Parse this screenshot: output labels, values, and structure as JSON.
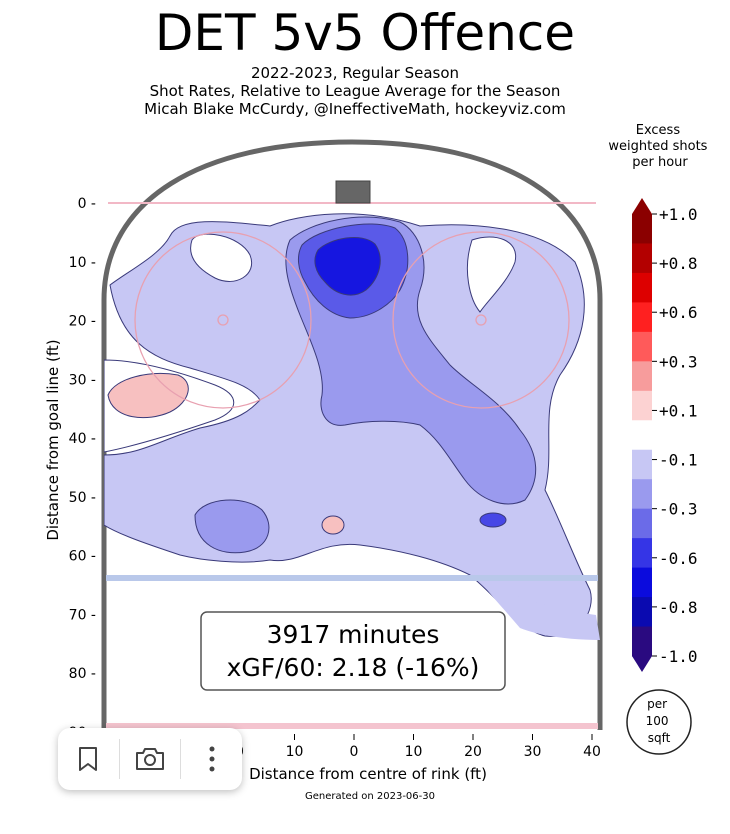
{
  "header": {
    "title": "DET 5v5 Offence",
    "subtitle_1": "2022-2023, Regular Season",
    "subtitle_2": "Shot Rates, Relative to League Average for the Season",
    "subtitle_3": "Micah Blake McCurdy, @IneffectiveMath, hockeyviz.com"
  },
  "chart_data": {
    "type": "heatmap",
    "xlabel": "Distance from centre of rink (ft)",
    "ylabel": "Distance from goal line (ft)",
    "x_ticks": [
      40,
      30,
      20,
      10,
      0,
      10,
      20,
      30,
      40
    ],
    "y_ticks": [
      0,
      10,
      20,
      30,
      40,
      50,
      60,
      70,
      80,
      90
    ],
    "colorbar_title": "Excess weighted shots per hour",
    "colorbar_ticks": [
      "+1.0",
      "+0.8",
      "+0.6",
      "+0.3",
      "+0.1",
      "-0.1",
      "-0.3",
      "-0.6",
      "-0.8",
      "-1.0"
    ],
    "colorbar_colors": [
      "#8b0000",
      "#b30000",
      "#dd0000",
      "#ff2020",
      "#ff5a5a",
      "#f79c9c",
      "#fcd2d2",
      "#ffffff",
      "#c7c7f4",
      "#9a9aee",
      "#6b6be8",
      "#3535e6",
      "#0b0bdd",
      "#0a0ab0",
      "#2a0a80"
    ],
    "unit_label": [
      "per",
      "100",
      "sqft"
    ],
    "stats": {
      "minutes": "3917 minutes",
      "xgf": "xGF/60: 2.18 (-16%)"
    },
    "footer": "Generated on 2023-06-30"
  },
  "toolbar": {
    "bookmark_icon": "bookmark-icon",
    "camera_icon": "camera-icon",
    "more_icon": "more-vertical-icon"
  }
}
